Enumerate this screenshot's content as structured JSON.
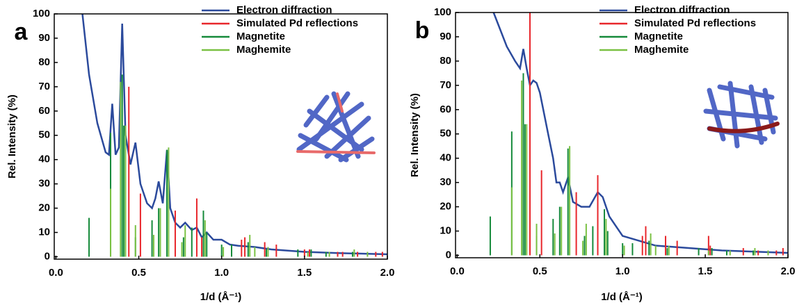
{
  "chart_data": [
    {
      "type": "line",
      "panel_label": "a",
      "xlabel": "1/d (Å⁻¹)",
      "ylabel": "Rel. Intensity (%)",
      "xlim": [
        -0.01,
        2.0
      ],
      "ylim": [
        -1,
        100
      ],
      "xticks": [
        {
          "value": 0,
          "label": "0.0"
        },
        {
          "value": 0.5,
          "label": "0.5"
        },
        {
          "value": 1,
          "label": "1.0"
        },
        {
          "value": 1.5,
          "label": "1.5"
        },
        {
          "value": 2,
          "label": "2.0"
        }
      ],
      "yticks": [
        0,
        10,
        20,
        30,
        40,
        50,
        60,
        70,
        80,
        90,
        100
      ],
      "legend": "upper right",
      "series": [
        {
          "name": "Electron diffraction",
          "color": "#2b4a9c",
          "style": "line",
          "x": [
            0.16,
            0.2,
            0.25,
            0.3,
            0.32,
            0.34,
            0.36,
            0.38,
            0.4,
            0.42,
            0.45,
            0.48,
            0.51,
            0.55,
            0.58,
            0.6,
            0.62,
            0.645,
            0.67,
            0.69,
            0.72,
            0.75,
            0.78,
            0.82,
            0.85,
            0.88,
            0.91,
            0.95,
            1.0,
            1.05,
            1.1,
            1.2,
            1.3,
            1.4,
            1.5,
            1.7,
            2.0
          ],
          "values": [
            100,
            75,
            55,
            43,
            42,
            63,
            42,
            45,
            96,
            50,
            38,
            47,
            30,
            22,
            20,
            24,
            31,
            22,
            44,
            20,
            14,
            12,
            14,
            11,
            12,
            8,
            10,
            7,
            7,
            5,
            4.5,
            4,
            3,
            2.5,
            2,
            1.5,
            1
          ]
        },
        {
          "name": "Simulated Pd reflections",
          "color": "#e8262b",
          "style": "stick",
          "x": [
            0.44,
            0.51,
            0.72,
            0.85,
            0.88,
            1.12,
            1.14,
            1.26,
            1.33,
            1.5,
            1.53,
            1.7,
            1.73,
            1.82,
            1.93,
            1.97
          ],
          "values": [
            70,
            26,
            19,
            24,
            8,
            7,
            8,
            6,
            5,
            3,
            3,
            2,
            2,
            2,
            2,
            2
          ]
        },
        {
          "name": "Magnetite",
          "color": "#158a3a",
          "style": "stick",
          "x": [
            0.2,
            0.33,
            0.4,
            0.41,
            0.48,
            0.58,
            0.62,
            0.67,
            0.77,
            0.82,
            0.89,
            0.91,
            1.0,
            1.06,
            1.16,
            1.27,
            1.46,
            1.54,
            1.63,
            1.79
          ],
          "values": [
            16,
            51,
            75,
            54,
            8,
            15,
            20,
            44,
            8,
            12,
            19,
            10,
            5,
            5,
            6,
            3,
            3,
            3,
            2,
            2
          ]
        },
        {
          "name": "Maghemite",
          "color": "#7ac143",
          "style": "stick",
          "x": [
            0.33,
            0.39,
            0.42,
            0.48,
            0.59,
            0.63,
            0.68,
            0.76,
            0.78,
            0.9,
            1.01,
            1.17,
            1.2,
            1.28,
            1.52,
            1.65,
            1.8,
            1.88
          ],
          "values": [
            28,
            72,
            54,
            13,
            9,
            20,
            45,
            6,
            13,
            15,
            4,
            9,
            4,
            4,
            2,
            2,
            3,
            2
          ]
        }
      ]
    },
    {
      "type": "line",
      "panel_label": "b",
      "xlabel": "1/d (Å⁻¹)",
      "ylabel": "Rel. Intensity (%)",
      "xlim": [
        -0.01,
        2.0
      ],
      "ylim": [
        -1,
        100
      ],
      "xticks": [
        {
          "value": 0,
          "label": "0.0"
        },
        {
          "value": 0.5,
          "label": "0.5"
        },
        {
          "value": 1,
          "label": "1.0"
        },
        {
          "value": 1.5,
          "label": "1.5"
        },
        {
          "value": 2,
          "label": "2.0"
        }
      ],
      "yticks": [
        0,
        10,
        20,
        30,
        40,
        50,
        60,
        70,
        80,
        90,
        100
      ],
      "legend": "upper right",
      "series": [
        {
          "name": "Electron diffraction",
          "color": "#2b4a9c",
          "style": "line",
          "x": [
            0.22,
            0.3,
            0.35,
            0.38,
            0.4,
            0.42,
            0.44,
            0.46,
            0.48,
            0.5,
            0.55,
            0.58,
            0.6,
            0.62,
            0.64,
            0.67,
            0.7,
            0.75,
            0.8,
            0.85,
            0.88,
            0.92,
            1.0,
            1.1,
            1.2,
            1.4,
            1.6,
            1.8,
            2.0
          ],
          "values": [
            100,
            86,
            80,
            77,
            85,
            77,
            70,
            72,
            71,
            67,
            50,
            40,
            30,
            30,
            26,
            32,
            22,
            20,
            20,
            26,
            24,
            16,
            8,
            6,
            4,
            3,
            2,
            1.5,
            1
          ]
        },
        {
          "name": "Simulated Pd reflections",
          "color": "#e8262b",
          "style": "stick",
          "x": [
            0.44,
            0.51,
            0.72,
            0.85,
            1.12,
            1.14,
            1.26,
            1.33,
            1.52,
            1.53,
            1.73,
            1.82,
            1.93,
            1.97
          ],
          "values": [
            100,
            35,
            26,
            33,
            8,
            12,
            8,
            6,
            8,
            4,
            3,
            2,
            2,
            3
          ]
        },
        {
          "name": "Magnetite",
          "color": "#158a3a",
          "style": "stick",
          "x": [
            0.2,
            0.33,
            0.4,
            0.41,
            0.48,
            0.58,
            0.62,
            0.67,
            0.77,
            0.82,
            0.89,
            0.91,
            1.0,
            1.06,
            1.16,
            1.27,
            1.46,
            1.54,
            1.63,
            1.79
          ],
          "values": [
            16,
            51,
            75,
            54,
            8,
            15,
            20,
            44,
            8,
            12,
            19,
            10,
            5,
            5,
            6,
            3,
            3,
            3,
            2,
            2
          ]
        },
        {
          "name": "Maghemite",
          "color": "#7ac143",
          "style": "stick",
          "x": [
            0.33,
            0.39,
            0.42,
            0.48,
            0.59,
            0.63,
            0.68,
            0.76,
            0.78,
            0.9,
            1.01,
            1.17,
            1.2,
            1.28,
            1.52,
            1.65,
            1.8,
            1.88
          ],
          "values": [
            28,
            72,
            54,
            13,
            9,
            20,
            45,
            6,
            13,
            15,
            4,
            9,
            4,
            4,
            2,
            2,
            3,
            2
          ]
        }
      ]
    }
  ]
}
